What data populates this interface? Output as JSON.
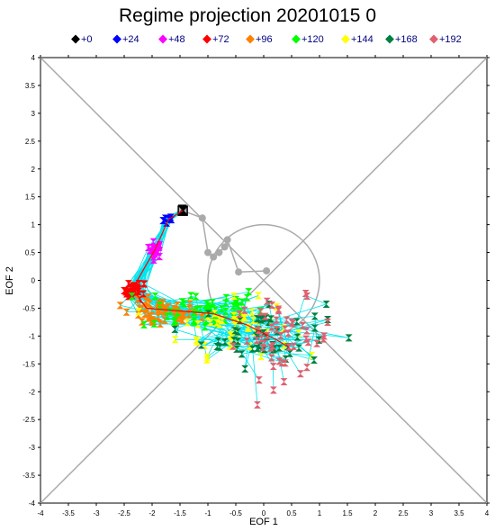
{
  "chart_data": {
    "type": "scatter",
    "title": "Regime projection  20201015 0",
    "xlabel": "EOF 1",
    "ylabel": "EOF 2",
    "xlim": [
      -4,
      4
    ],
    "ylim": [
      -4,
      4
    ],
    "xticks": [
      "-4",
      "-3.5",
      "-3",
      "-2.5",
      "-2",
      "-1.5",
      "-1",
      "-0.5",
      "0",
      "0.5",
      "1",
      "1.5",
      "2",
      "2.5",
      "3",
      "3.5",
      "4"
    ],
    "yticks": [
      "-4",
      "-3.5",
      "-3",
      "-2.5",
      "-2",
      "-1.5",
      "-1",
      "-0.5",
      "0",
      "0.5",
      "1",
      "1.5",
      "2",
      "2.5",
      "3",
      "3.5",
      "4"
    ],
    "legend_position": "top",
    "reference_circle": {
      "center": [
        0,
        0
      ],
      "radius": 1
    },
    "colors": {
      "frame": "#aaaaaa",
      "ensemble_track": "#00e5ee",
      "mean_track": "#aaaaaa",
      "control_track": "#ff0000",
      "legend_text": "#000080"
    },
    "legend": [
      {
        "label": "+0",
        "color": "#000000"
      },
      {
        "label": "+24",
        "color": "#0000ff"
      },
      {
        "label": "+48",
        "color": "#ff00ff"
      },
      {
        "label": "+72",
        "color": "#ff0000"
      },
      {
        "label": "+96",
        "color": "#ff8000"
      },
      {
        "label": "+120",
        "color": "#00ff00"
      },
      {
        "label": "+144",
        "color": "#ffff00"
      },
      {
        "label": "+168",
        "color": "#008040"
      },
      {
        "label": "+192",
        "color": "#e06070"
      }
    ],
    "ensemble_mean_track": [
      [
        -1.45,
        1.25
      ],
      [
        -1.1,
        1.12
      ],
      [
        -1.0,
        0.5
      ],
      [
        -0.9,
        0.42
      ],
      [
        -0.8,
        0.5
      ],
      [
        -0.7,
        0.6
      ],
      [
        -0.65,
        0.73
      ],
      [
        -0.45,
        0.15
      ],
      [
        0.05,
        0.17
      ]
    ],
    "control_track": [
      [
        -1.45,
        1.25
      ],
      [
        -1.7,
        1.1
      ],
      [
        -1.95,
        0.55
      ],
      [
        -2.35,
        -0.15
      ],
      [
        -2.1,
        -0.5
      ],
      [
        -1.5,
        -0.55
      ],
      [
        -0.9,
        -0.6
      ],
      [
        -0.3,
        -0.8
      ],
      [
        0.2,
        -1.05
      ],
      [
        0.45,
        -1.2
      ]
    ],
    "clusters": [
      {
        "label": "+0",
        "cx": -1.45,
        "cy": 1.25,
        "sx": 0.02,
        "sy": 0.02,
        "n": 4
      },
      {
        "label": "+24",
        "cx": -1.7,
        "cy": 1.1,
        "sx": 0.05,
        "sy": 0.05,
        "n": 8
      },
      {
        "label": "+48",
        "cx": -1.95,
        "cy": 0.55,
        "sx": 0.07,
        "sy": 0.07,
        "n": 16
      },
      {
        "label": "+72",
        "cx": -2.3,
        "cy": -0.18,
        "sx": 0.1,
        "sy": 0.08,
        "n": 24
      },
      {
        "label": "+96",
        "cx": -1.85,
        "cy": -0.6,
        "sx": 0.35,
        "sy": 0.12,
        "n": 50
      },
      {
        "label": "+120",
        "cx": -1.1,
        "cy": -0.5,
        "sx": 0.55,
        "sy": 0.2,
        "n": 50
      },
      {
        "label": "+144",
        "cx": -0.5,
        "cy": -0.85,
        "sx": 0.5,
        "sy": 0.25,
        "n": 50
      },
      {
        "label": "+168",
        "cx": 0.0,
        "cy": -0.95,
        "sx": 0.55,
        "sy": 0.3,
        "n": 50
      },
      {
        "label": "+192",
        "cx": 0.35,
        "cy": -1.05,
        "sx": 0.45,
        "sy": 0.35,
        "n": 50
      }
    ]
  }
}
